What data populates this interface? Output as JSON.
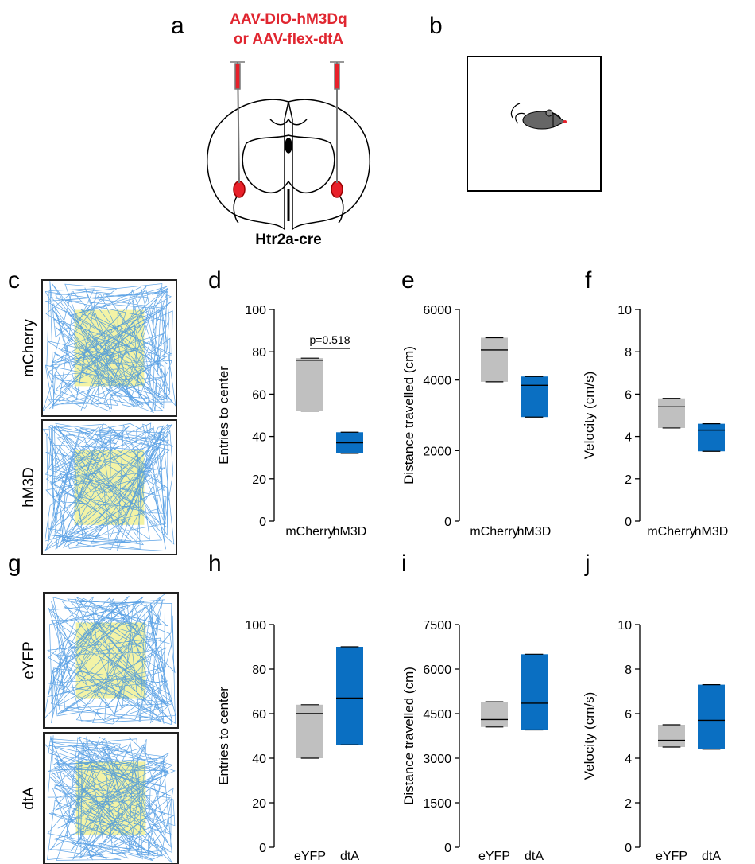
{
  "panel_labels": [
    "a",
    "b",
    "c",
    "d",
    "e",
    "f",
    "g",
    "h",
    "i",
    "j"
  ],
  "diagram": {
    "virus_line1": "AAV-DIO-hM3Dq",
    "virus_line2": "or AAV-flex-dtA",
    "mouse_line": "Htr2a-cre"
  },
  "tracks": [
    "mCherry",
    "hM3D",
    "eYFP",
    "dtA"
  ],
  "chart_data": [
    {
      "type": "box",
      "ylabel": "Entries to center",
      "categories": [
        "mCherry",
        "hM3D"
      ],
      "colors": [
        "#c0c0c0",
        "#0a6fc2"
      ],
      "min": [
        52,
        32
      ],
      "q1": [
        52,
        32
      ],
      "median": [
        76,
        37
      ],
      "q3": [
        77,
        42
      ],
      "max": [
        77,
        42
      ],
      "ylim": [
        0,
        100
      ],
      "yticks": [
        0,
        20,
        40,
        60,
        80,
        100
      ],
      "annotation": "p=0.518"
    },
    {
      "type": "box",
      "ylabel": "Distance travelled (cm)",
      "categories": [
        "mCherry",
        "hM3D"
      ],
      "colors": [
        "#c0c0c0",
        "#0a6fc2"
      ],
      "min": [
        3950,
        2950
      ],
      "q1": [
        3950,
        2950
      ],
      "median": [
        4850,
        3850
      ],
      "q3": [
        5200,
        4100
      ],
      "max": [
        5200,
        4100
      ],
      "ylim": [
        0,
        6000
      ],
      "yticks": [
        0,
        2000,
        4000,
        6000
      ]
    },
    {
      "type": "box",
      "ylabel": "Velocity (cm/s)",
      "categories": [
        "mCherry",
        "hM3D"
      ],
      "colors": [
        "#c0c0c0",
        "#0a6fc2"
      ],
      "min": [
        4.4,
        3.3
      ],
      "q1": [
        4.4,
        3.3
      ],
      "median": [
        5.4,
        4.3
      ],
      "q3": [
        5.8,
        4.6
      ],
      "max": [
        5.8,
        4.6
      ],
      "ylim": [
        0,
        10
      ],
      "yticks": [
        0,
        2,
        4,
        6,
        8,
        10
      ]
    },
    {
      "type": "box",
      "ylabel": "Entries to center",
      "categories": [
        "eYFP",
        "dtA"
      ],
      "colors": [
        "#c0c0c0",
        "#0a6fc2"
      ],
      "min": [
        40,
        46
      ],
      "q1": [
        40,
        46
      ],
      "median": [
        60,
        67
      ],
      "q3": [
        64,
        90
      ],
      "max": [
        64,
        90
      ],
      "ylim": [
        0,
        100
      ],
      "yticks": [
        0,
        20,
        40,
        60,
        80,
        100
      ]
    },
    {
      "type": "box",
      "ylabel": "Distance travelled (cm)",
      "categories": [
        "eYFP",
        "dtA"
      ],
      "colors": [
        "#c0c0c0",
        "#0a6fc2"
      ],
      "min": [
        4050,
        3950
      ],
      "q1": [
        4050,
        3950
      ],
      "median": [
        4300,
        4850
      ],
      "q3": [
        4900,
        6500
      ],
      "max": [
        4900,
        6500
      ],
      "ylim": [
        0,
        7500
      ],
      "yticks": [
        0,
        1500,
        3000,
        4500,
        6000,
        7500
      ]
    },
    {
      "type": "box",
      "ylabel": "Velocity (cm/s)",
      "categories": [
        "eYFP",
        "dtA"
      ],
      "colors": [
        "#c0c0c0",
        "#0a6fc2"
      ],
      "min": [
        4.5,
        4.4
      ],
      "q1": [
        4.5,
        4.4
      ],
      "median": [
        4.8,
        5.7
      ],
      "q3": [
        5.5,
        7.3
      ],
      "max": [
        5.5,
        7.3
      ],
      "ylim": [
        0,
        10
      ],
      "yticks": [
        0,
        2,
        4,
        6,
        8,
        10
      ]
    }
  ]
}
